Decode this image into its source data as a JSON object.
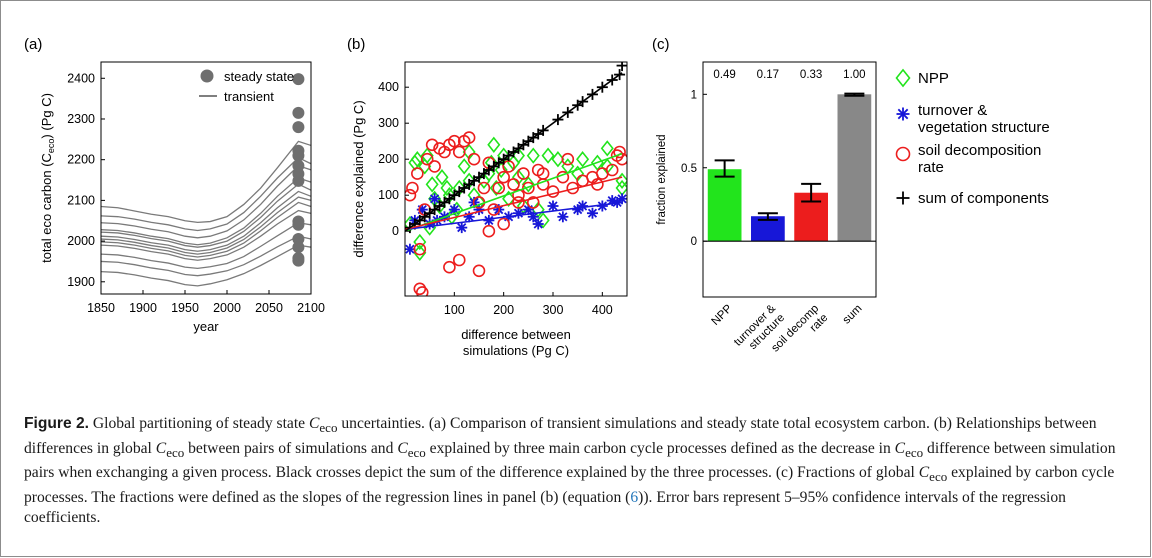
{
  "panels": {
    "a": {
      "label": "(a)"
    },
    "b": {
      "label": "(b)"
    },
    "c": {
      "label": "(c)"
    }
  },
  "chart_data": [
    {
      "id": "a",
      "type": "line",
      "xlabel": "year",
      "ylabel_main": "total eco carbon (C",
      "ylabel_sub": "eco",
      "ylabel_tail": ") (Pg C)",
      "xlim": [
        1850,
        2100
      ],
      "ylim": [
        1870,
        2440
      ],
      "xticks": [
        1850,
        1900,
        1950,
        2000,
        2050,
        2100
      ],
      "yticks": [
        1900,
        2000,
        2100,
        2200,
        2300,
        2400
      ],
      "legend": {
        "position": "top-right",
        "entries": [
          "steady state",
          "transient"
        ]
      },
      "steady_state": {
        "x": 2085,
        "values": [
          2398,
          2315,
          2280,
          2222,
          2210,
          2185,
          2165,
          2148,
          2048,
          2040,
          2005,
          1985,
          1958,
          1952
        ]
      },
      "transient_x": [
        1850,
        1870,
        1890,
        1910,
        1930,
        1950,
        1965,
        1980,
        2000,
        2020,
        2040,
        2060,
        2085,
        2100
      ],
      "transient": [
        [
          2085,
          2082,
          2074,
          2066,
          2060,
          2050,
          2046,
          2048,
          2060,
          2090,
          2130,
          2180,
          2245,
          2235
        ],
        [
          2062,
          2060,
          2054,
          2046,
          2040,
          2030,
          2026,
          2030,
          2042,
          2070,
          2110,
          2155,
          2205,
          2190
        ],
        [
          2045,
          2043,
          2037,
          2029,
          2023,
          2012,
          2008,
          2012,
          2025,
          2052,
          2090,
          2135,
          2185,
          2175
        ],
        [
          2028,
          2026,
          2020,
          2012,
          2006,
          1995,
          1991,
          1995,
          2008,
          2032,
          2068,
          2110,
          2155,
          2145
        ],
        [
          2022,
          2020,
          2014,
          2006,
          2000,
          1989,
          1985,
          1989,
          2000,
          2024,
          2058,
          2098,
          2140,
          2125
        ],
        [
          2012,
          2010,
          2004,
          1996,
          1990,
          1979,
          1975,
          1979,
          1990,
          2012,
          2045,
          2082,
          2122,
          2110
        ],
        [
          2005,
          2003,
          1997,
          1989,
          1983,
          1972,
          1968,
          1972,
          1983,
          2004,
          2035,
          2070,
          2108,
          2100
        ],
        [
          1998,
          1996,
          1990,
          1982,
          1976,
          1965,
          1961,
          1965,
          1975,
          1995,
          2025,
          2058,
          2095,
          2085
        ],
        [
          1990,
          1988,
          1982,
          1974,
          1968,
          1957,
          1953,
          1957,
          1966,
          1985,
          2012,
          2042,
          2075,
          2068
        ],
        [
          1968,
          1966,
          1960,
          1952,
          1946,
          1936,
          1933,
          1937,
          1945,
          1962,
          1987,
          2013,
          2045,
          2040
        ],
        [
          1950,
          1948,
          1942,
          1934,
          1928,
          1918,
          1915,
          1919,
          1927,
          1942,
          1963,
          1986,
          2012,
          2005
        ],
        [
          1925,
          1923,
          1917,
          1909,
          1903,
          1893,
          1890,
          1895,
          1905,
          1920,
          1940,
          1962,
          1990,
          1985
        ]
      ]
    },
    {
      "id": "b",
      "type": "scatter",
      "xlabel_line1": "difference between",
      "xlabel_line2": "simulations (Pg C)",
      "ylabel": "difference explained (Pg C)",
      "xlim": [
        0,
        450
      ],
      "ylim": [
        -180,
        470
      ],
      "xticks": [
        100,
        200,
        300,
        400
      ],
      "yticks": [
        0,
        100,
        200,
        300,
        400
      ],
      "series": [
        {
          "key": "npp",
          "marker": "diamond",
          "color": "#22e41c",
          "slope": 0.49,
          "intercept": 0,
          "x": [
            10,
            20,
            25,
            30,
            40,
            45,
            55,
            60,
            70,
            75,
            85,
            95,
            105,
            110,
            120,
            130,
            140,
            150,
            160,
            170,
            175,
            185,
            195,
            200,
            210,
            220,
            230,
            240,
            250,
            260,
            270,
            290,
            310,
            330,
            360,
            390,
            410,
            440,
            440,
            30,
            50,
            90,
            130,
            180,
            230,
            280,
            350,
            410
          ],
          "y": [
            20,
            190,
            200,
            -30,
            180,
            210,
            130,
            90,
            70,
            150,
            120,
            40,
            60,
            120,
            180,
            140,
            100,
            80,
            140,
            160,
            190,
            120,
            170,
            210,
            90,
            190,
            150,
            70,
            130,
            210,
            60,
            210,
            200,
            180,
            200,
            190,
            180,
            140,
            120,
            -60,
            10,
            100,
            220,
            240,
            210,
            30,
            160,
            230
          ]
        },
        {
          "key": "turnover",
          "marker": "star",
          "color": "#1717d8",
          "slope": 0.17,
          "intercept": 5,
          "x": [
            10,
            20,
            35,
            50,
            65,
            80,
            100,
            115,
            130,
            150,
            170,
            190,
            210,
            230,
            250,
            270,
            300,
            320,
            350,
            380,
            400,
            430,
            440,
            60,
            140,
            260,
            360,
            420
          ],
          "y": [
            -50,
            30,
            60,
            20,
            30,
            40,
            60,
            10,
            40,
            60,
            30,
            60,
            40,
            50,
            60,
            20,
            70,
            40,
            60,
            50,
            70,
            80,
            90,
            90,
            80,
            40,
            70,
            85
          ]
        },
        {
          "key": "soil",
          "marker": "circle",
          "color": "#ec1d1d",
          "slope": 0.33,
          "intercept": 5,
          "x": [
            10,
            15,
            25,
            30,
            35,
            45,
            55,
            60,
            70,
            80,
            90,
            100,
            110,
            120,
            130,
            140,
            150,
            160,
            170,
            180,
            190,
            200,
            210,
            220,
            230,
            240,
            250,
            260,
            270,
            280,
            300,
            320,
            340,
            360,
            380,
            400,
            420,
            435,
            440,
            30,
            40,
            90,
            110,
            150,
            170,
            200,
            230,
            280,
            330,
            390,
            430
          ],
          "y": [
            100,
            120,
            160,
            -160,
            -170,
            200,
            240,
            180,
            230,
            220,
            240,
            250,
            220,
            250,
            260,
            200,
            80,
            120,
            190,
            60,
            120,
            150,
            180,
            130,
            100,
            160,
            120,
            80,
            170,
            130,
            110,
            150,
            120,
            140,
            150,
            160,
            170,
            220,
            200,
            -50,
            60,
            -100,
            -80,
            -110,
            0,
            20,
            80,
            160,
            200,
            130,
            210
          ]
        },
        {
          "key": "sum",
          "marker": "plus",
          "color": "#000000",
          "slope": 1.0,
          "intercept": 0,
          "x": [
            10,
            20,
            30,
            40,
            50,
            60,
            70,
            80,
            90,
            100,
            110,
            120,
            130,
            140,
            150,
            160,
            170,
            180,
            190,
            200,
            210,
            220,
            230,
            240,
            250,
            260,
            270,
            280,
            310,
            330,
            350,
            360,
            380,
            400,
            420,
            435,
            440
          ],
          "y": [
            10,
            20,
            30,
            40,
            50,
            60,
            70,
            80,
            90,
            100,
            110,
            120,
            130,
            140,
            150,
            160,
            170,
            180,
            190,
            200,
            210,
            220,
            230,
            240,
            250,
            260,
            270,
            280,
            310,
            330,
            350,
            360,
            380,
            400,
            420,
            435,
            460
          ]
        }
      ]
    },
    {
      "id": "c",
      "type": "bar",
      "ylabel": "fraction explained",
      "ylim": [
        -0.38,
        1.22
      ],
      "yticks": [
        0,
        0.5,
        1
      ],
      "categories": [
        "NPP",
        "turnover & structure",
        "soil decomp rate",
        "sum"
      ],
      "category_lines": [
        [
          "NPP"
        ],
        [
          "turnover &",
          "structure"
        ],
        [
          "soil decomp",
          "rate"
        ],
        [
          "sum"
        ]
      ],
      "values": [
        0.49,
        0.17,
        0.33,
        1.0
      ],
      "value_labels": [
        "0.49",
        "0.17",
        "0.33",
        "1.00"
      ],
      "ci_low": [
        0.44,
        0.145,
        0.27,
        0.99
      ],
      "ci_high": [
        0.55,
        0.19,
        0.39,
        1.005
      ],
      "colors": [
        "#22e41c",
        "#1717d8",
        "#ec1d1d",
        "#888888"
      ]
    }
  ],
  "legend_c": {
    "entries": [
      {
        "marker": "diamond",
        "color": "#22e41c",
        "lines": [
          "NPP"
        ]
      },
      {
        "marker": "star",
        "color": "#1717d8",
        "lines": [
          "turnover &",
          "vegetation structure"
        ]
      },
      {
        "marker": "circle",
        "color": "#ec1d1d",
        "lines": [
          "soil decomposition",
          "rate"
        ]
      },
      {
        "marker": "plus",
        "color": "#000000",
        "lines": [
          "sum of components"
        ]
      }
    ]
  },
  "caption": {
    "label": "Figure 2.",
    "text_a": " Global partitioning of steady state ",
    "text_b": " uncertainties. (a) Comparison of transient simulations and steady state total ecosystem carbon. (b) Relationships between differences in global ",
    "text_c": " between pairs of simulations and ",
    "text_d": " explained by three main carbon cycle processes defined as the decrease in ",
    "text_e": " difference between simulation pairs when exchanging a given process. Black crosses depict the sum of the difference explained by the three processes. (c) Fractions of global ",
    "text_f": " explained by carbon cycle processes. The fractions were defined as the slopes of the regression lines in panel (b) (equation (",
    "eq_ref": "6",
    "text_g": ")). Error bars represent 5–95% confidence intervals of the regression coefficients.",
    "sym_main": "C",
    "sym_sub": "eco"
  }
}
